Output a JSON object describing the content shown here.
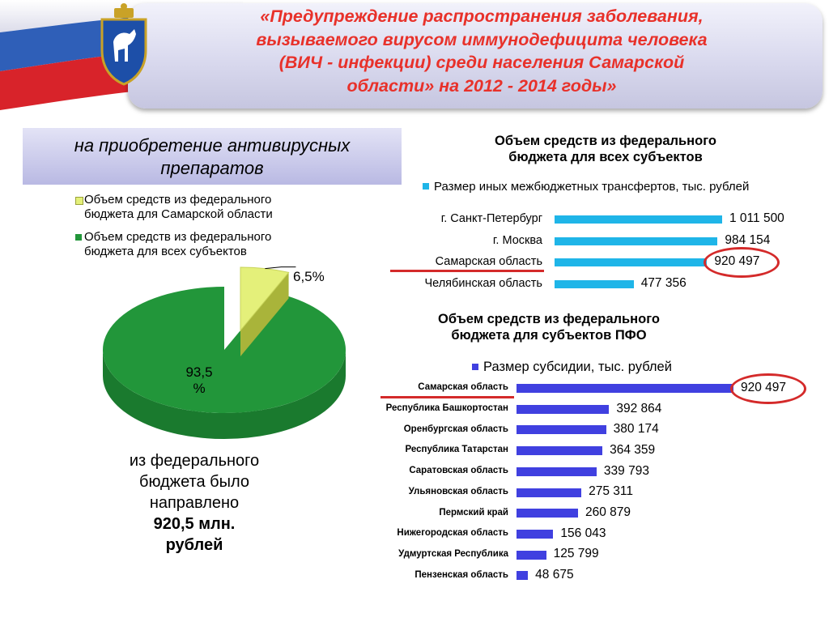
{
  "header": {
    "title_lines": [
      "«Предупреждение распространения заболевания,",
      "вызываемого вирусом иммунодефицита человека",
      "(ВИЧ - инфекции) среди населения Самарской",
      "области» на 2012 - 2014 годы»"
    ]
  },
  "left_panel": {
    "subtitle_lines": [
      "на приобретение антивирусных",
      "препаратов"
    ],
    "summary": {
      "lines": [
        "из  федерального",
        "бюджета было",
        "направлено"
      ],
      "bold_lines": [
        "920,5 млн.",
        "рублей"
      ]
    }
  },
  "colors": {
    "samara": "#e4f07a",
    "all_subjects": "#22963a",
    "federal_bars": "#1fb5e8",
    "pfo_bars": "#4040e0",
    "highlight": "#d42a2a",
    "title": "#e8312a"
  },
  "chart_data": [
    {
      "type": "pie",
      "legend": [
        "Объем средств из федерального бюджета для Самарской области",
        "Объем средств из федерального бюджета для всех субъектов"
      ],
      "legend_lines": [
        [
          "Объем средств из федерального",
          "бюджета для Самарской области"
        ],
        [
          "Объем средств из федерального",
          "бюджета для всех субъектов"
        ]
      ],
      "slices": [
        {
          "name": "Объем средств из федерального бюджета для Самарской области",
          "value": 6.5,
          "label": "6,5%"
        },
        {
          "name": "Объем средств из федерального бюджета для всех субъектов",
          "value": 93.5,
          "label_lines": [
            "93,5",
            "%"
          ]
        }
      ]
    },
    {
      "type": "bar",
      "orientation": "horizontal",
      "title_lines": [
        "Объем средств из федерального",
        "бюджета для всех субъектов"
      ],
      "series_name": "Размер иных межбюджетных трансфертов, тыс. рублей",
      "categories": [
        "г. Санкт-Петербург",
        "г. Москва",
        "Самарская область",
        "Челябинская область"
      ],
      "values": [
        1011500,
        984154,
        920497,
        477356
      ],
      "value_labels": [
        "1 011 500",
        "984 154",
        "920 497",
        "477 356"
      ],
      "highlight": "Самарская область"
    },
    {
      "type": "bar",
      "orientation": "horizontal",
      "title_lines": [
        "Объем средств из федерального",
        "бюджета для субъектов ПФО"
      ],
      "series_name": "Размер субсидии, тыс. рублей",
      "categories": [
        "Самарская область",
        "Республика Башкортостан",
        "Оренбургская область",
        "Республика Татарстан",
        "Саратовская область",
        "Ульяновская область",
        "Пермский край",
        "Нижегородская область",
        "Удмуртская Республика",
        "Пензенская область"
      ],
      "values": [
        920497,
        392864,
        380174,
        364359,
        339793,
        275311,
        260879,
        156043,
        125799,
        48675
      ],
      "value_labels": [
        "920 497",
        "392 864",
        "380 174",
        "364 359",
        "339 793",
        "275 311",
        "260 879",
        "156 043",
        "125 799",
        "48 675"
      ],
      "highlight": "Самарская область"
    }
  ]
}
